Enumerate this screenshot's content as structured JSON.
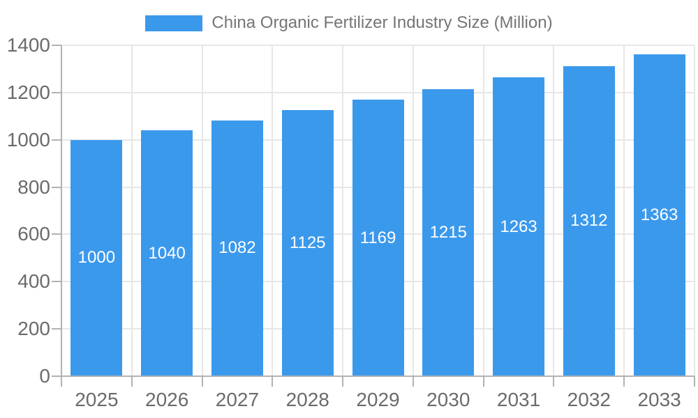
{
  "chart_data": {
    "type": "bar",
    "title": "China Organic Fertilizer Industry Size (Million)",
    "series_name": "China Organic Fertilizer Industry Size (Million)",
    "categories": [
      "2025",
      "2026",
      "2027",
      "2028",
      "2029",
      "2030",
      "2031",
      "2032",
      "2033"
    ],
    "values": [
      1000,
      1040,
      1082,
      1125,
      1169,
      1215,
      1263,
      1312,
      1363
    ],
    "xlabel": "",
    "ylabel": "",
    "ylim": [
      0,
      1400
    ],
    "yticks": [
      0,
      200,
      400,
      600,
      800,
      1000,
      1200,
      1400
    ],
    "grid": true,
    "legend_position": "top",
    "data_labels_position": "inside-center"
  },
  "colors": {
    "bar": "#3B99EC",
    "data_label": "#FFFFFF",
    "axis_label": "#6B6B6B",
    "legend_text": "#757575",
    "gridline": "#E7E7E7",
    "axis_line": "#B2B2B2",
    "background": "#FFFFFF"
  }
}
